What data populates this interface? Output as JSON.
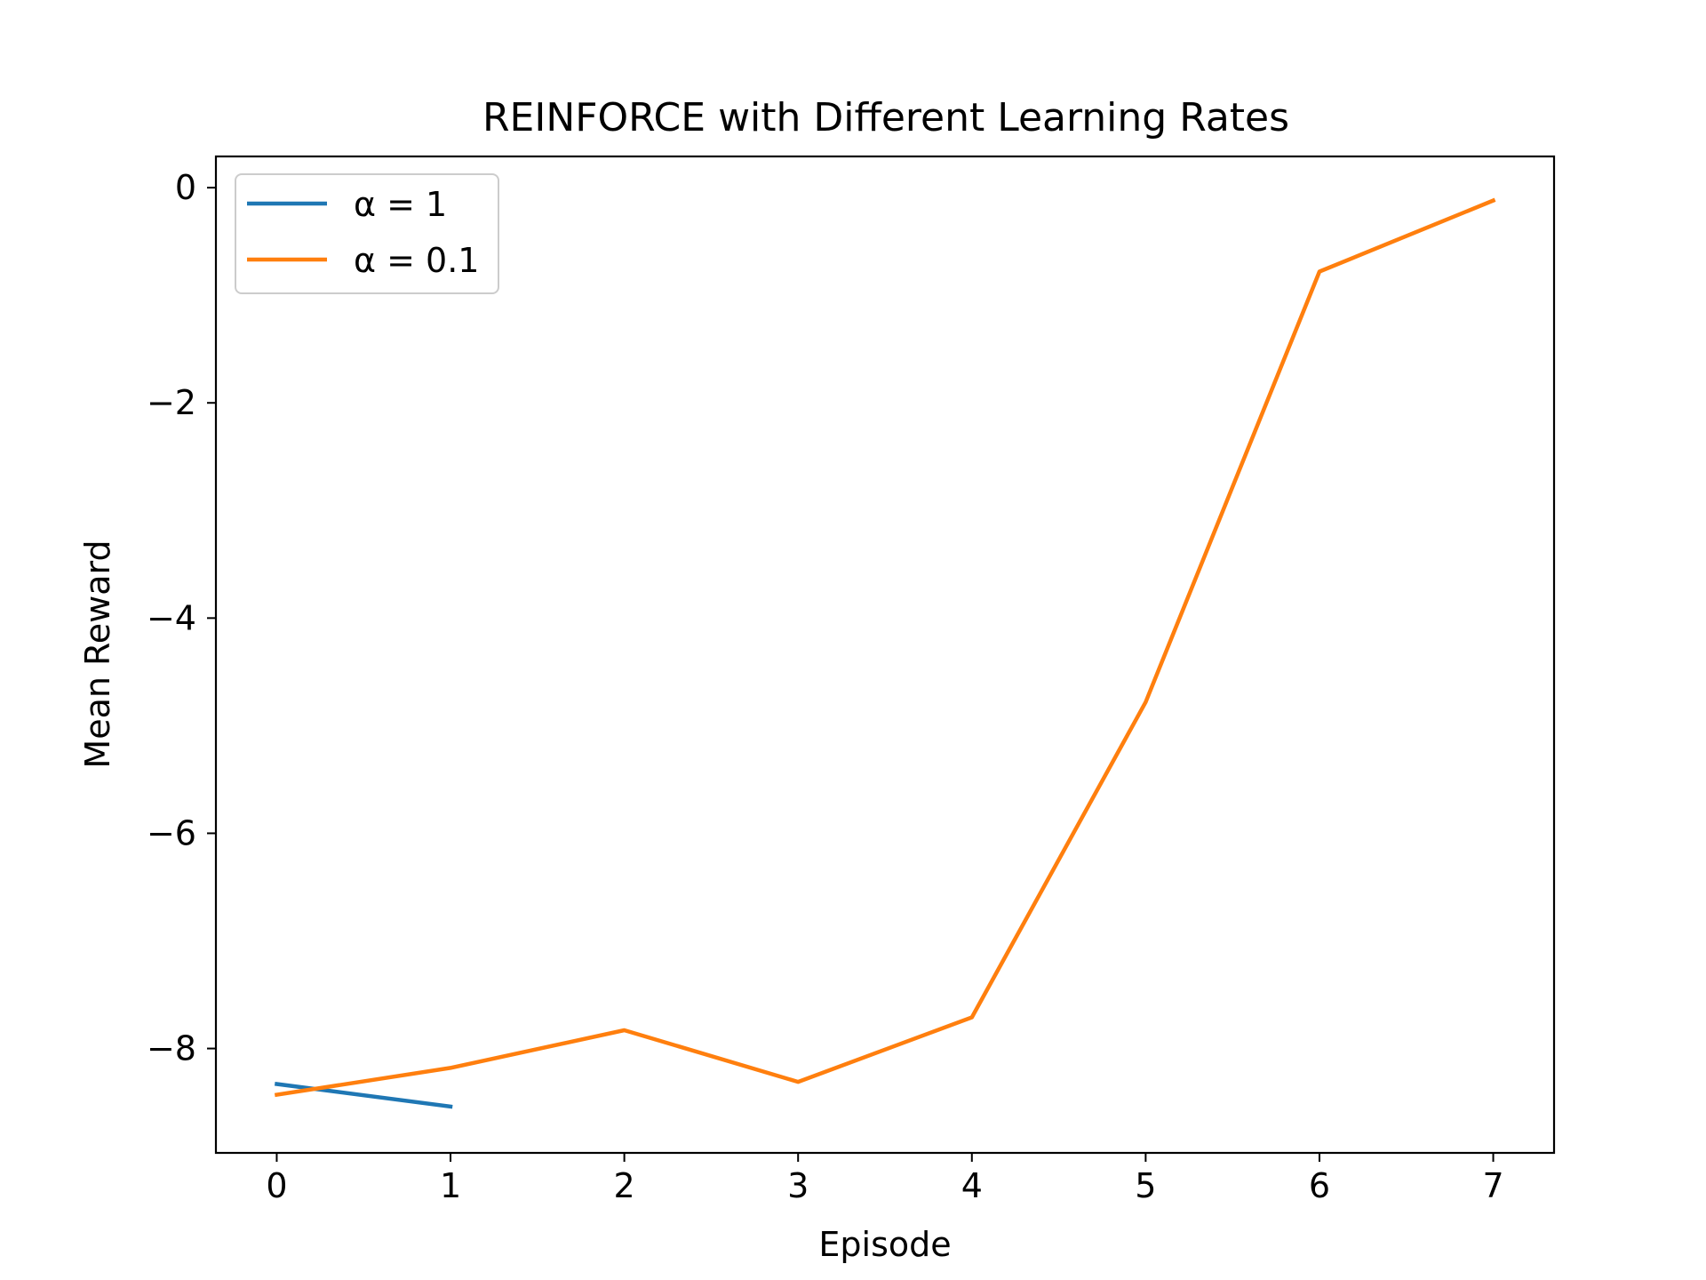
{
  "chart_data": {
    "type": "line",
    "title": "REINFORCE with Different Learning Rates",
    "xlabel": "Episode",
    "ylabel": "Mean Reward",
    "xlim": [
      -0.35,
      7.35
    ],
    "ylim": [
      -8.97,
      0.29
    ],
    "xticks": [
      0,
      1,
      2,
      3,
      4,
      5,
      6,
      7
    ],
    "yticks": [
      0,
      -2,
      -4,
      -6,
      -8
    ],
    "xtick_labels": [
      "0",
      "1",
      "2",
      "3",
      "4",
      "5",
      "6",
      "7"
    ],
    "ytick_labels": [
      "0",
      "−2",
      "−4",
      "−6",
      "−8"
    ],
    "grid": false,
    "legend_position": "top-left",
    "series": [
      {
        "name": "α = 1",
        "color": "#1f77b4",
        "x": [
          0,
          1
        ],
        "y": [
          -8.33,
          -8.54
        ]
      },
      {
        "name": "α = 0.1",
        "color": "#ff7f0e",
        "x": [
          0,
          1,
          2,
          3,
          4,
          5,
          6,
          7
        ],
        "y": [
          -8.43,
          -8.18,
          -7.83,
          -8.31,
          -7.71,
          -4.78,
          -0.78,
          -0.12
        ]
      }
    ]
  }
}
